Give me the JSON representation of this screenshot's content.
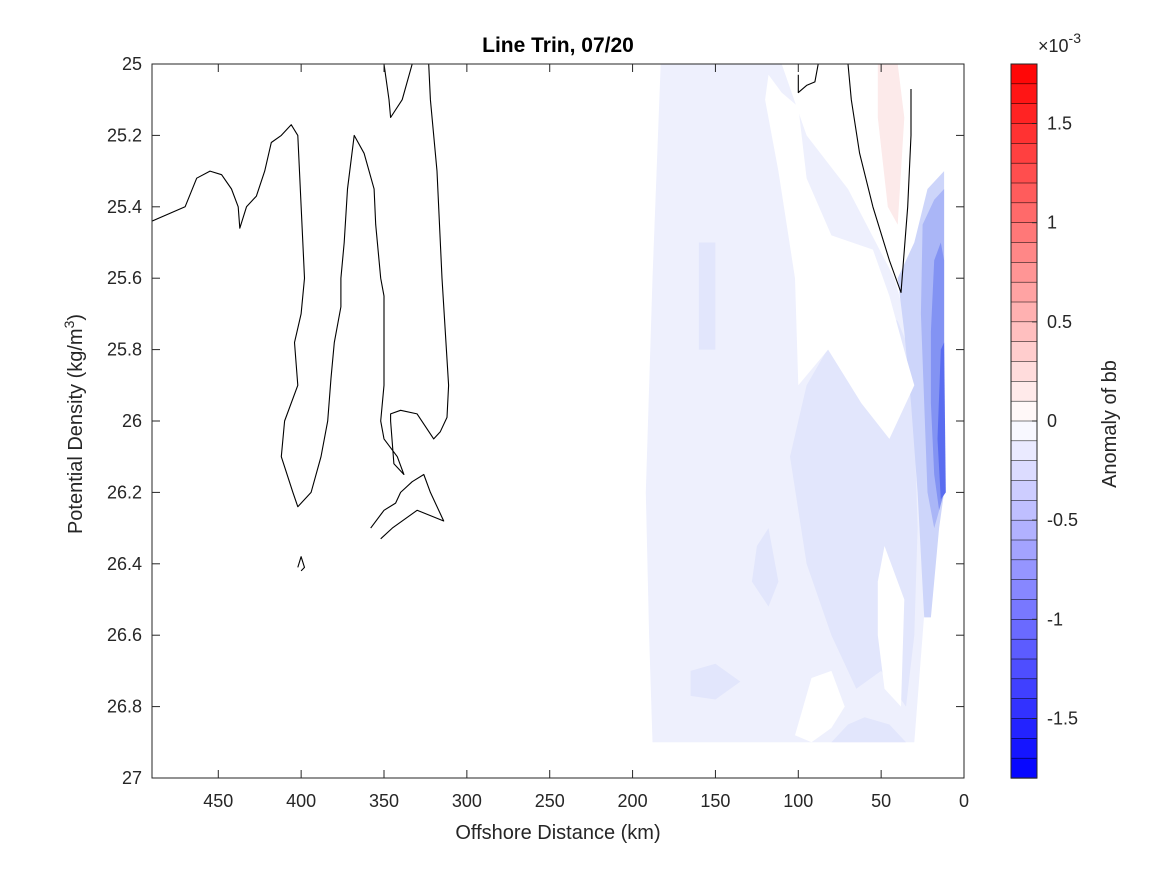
{
  "chart_data": {
    "type": "contour",
    "title": "Line Trin, 07/20",
    "xlabel": "Offshore Distance (km)",
    "ylabel_main": "Potential Density (kg/m",
    "ylabel_sup": "3",
    "ylabel_close": ")",
    "xlim": [
      490,
      0
    ],
    "ylim": [
      25,
      27
    ],
    "x_reversed": true,
    "y_reversed": true,
    "xticks": [
      450,
      400,
      350,
      300,
      250,
      200,
      150,
      100,
      50,
      0
    ],
    "yticks": [
      25,
      25.2,
      25.4,
      25.6,
      25.8,
      26,
      26.2,
      26.4,
      26.6,
      26.8,
      27
    ],
    "ytick_labels": [
      "25",
      "25.2",
      "25.4",
      "25.6",
      "25.8",
      "26",
      "26.2",
      "26.4",
      "26.6",
      "26.8",
      "27"
    ],
    "colorbar": {
      "label": "Anomaly of bb",
      "exponent_base": "×10",
      "exponent_power": "-3",
      "range": [
        -1.8,
        1.8
      ],
      "ticks": [
        1.5,
        1,
        0.5,
        0,
        -0.5,
        -1,
        -1.5
      ],
      "tick_labels": [
        "1.5",
        "1",
        "0.5",
        "0",
        "-0.5",
        "-1",
        "-1.5"
      ],
      "levels": 36,
      "color_low": "#0000ff",
      "color_mid": "#ffffff",
      "color_high": "#ff0000"
    },
    "filled_regions": [
      {
        "level": -0.1,
        "color": "#eef0fd",
        "points": [
          [
            183,
            25
          ],
          [
            110,
            25
          ],
          [
            95,
            25.2
          ],
          [
            70,
            25.35
          ],
          [
            42,
            25.6
          ],
          [
            30,
            25.8
          ],
          [
            22,
            26
          ],
          [
            20,
            26.3
          ],
          [
            25,
            26.6
          ],
          [
            30,
            26.9
          ],
          [
            188,
            26.9
          ],
          [
            190,
            26.6
          ],
          [
            192,
            26.2
          ],
          [
            188,
            25.6
          ]
        ]
      },
      {
        "level": -0.2,
        "color": "#e2e6fc",
        "points": [
          [
            160,
            25.5
          ],
          [
            150,
            25.5
          ],
          [
            150,
            25.8
          ],
          [
            160,
            25.8
          ]
        ]
      },
      {
        "level": -0.2,
        "color": "#e2e6fc",
        "points": [
          [
            70,
            25.7
          ],
          [
            95,
            25.9
          ],
          [
            105,
            26.1
          ],
          [
            95,
            26.4
          ],
          [
            80,
            26.6
          ],
          [
            65,
            26.75
          ],
          [
            50,
            26.7
          ],
          [
            35,
            26.8
          ],
          [
            30,
            26.6
          ],
          [
            28,
            26.3
          ],
          [
            30,
            26
          ],
          [
            33,
            25.8
          ],
          [
            40,
            25.72
          ],
          [
            55,
            25.68
          ]
        ]
      },
      {
        "level": -0.2,
        "color": "#e2e6fc",
        "points": [
          [
            165,
            26.7
          ],
          [
            150,
            26.68
          ],
          [
            135,
            26.73
          ],
          [
            150,
            26.78
          ],
          [
            165,
            26.77
          ]
        ]
      },
      {
        "level": -0.2,
        "color": "#e2e6fc",
        "points": [
          [
            80,
            26.9
          ],
          [
            70,
            26.85
          ],
          [
            60,
            26.83
          ],
          [
            45,
            26.85
          ],
          [
            35,
            26.9
          ]
        ]
      },
      {
        "level": -0.2,
        "color": "#e2e6fc",
        "points": [
          [
            125,
            26.35
          ],
          [
            118,
            26.3
          ],
          [
            112,
            26.45
          ],
          [
            118,
            26.52
          ],
          [
            128,
            26.45
          ]
        ]
      },
      {
        "level": -0.4,
        "color": "#cdd5fa",
        "points": [
          [
            40,
            25.6
          ],
          [
            30,
            25.5
          ],
          [
            22,
            25.35
          ],
          [
            12,
            25.3
          ],
          [
            12,
            26.2
          ],
          [
            15,
            26.3
          ],
          [
            20,
            26.55
          ],
          [
            24,
            26.55
          ],
          [
            28,
            26.2
          ],
          [
            32,
            25.95
          ],
          [
            36,
            25.75
          ]
        ]
      },
      {
        "level": -0.7,
        "color": "#aab6f7",
        "points": [
          [
            25,
            25.45
          ],
          [
            18,
            25.38
          ],
          [
            12,
            25.35
          ],
          [
            12,
            26.2
          ],
          [
            18,
            26.3
          ],
          [
            22,
            26.2
          ],
          [
            24,
            25.95
          ],
          [
            26,
            25.7
          ]
        ]
      },
      {
        "level": -1.0,
        "color": "#8393f3",
        "points": [
          [
            18,
            25.55
          ],
          [
            14,
            25.5
          ],
          [
            12,
            25.55
          ],
          [
            12,
            26.2
          ],
          [
            15,
            26.25
          ],
          [
            18,
            26.15
          ],
          [
            20,
            25.95
          ],
          [
            20,
            25.75
          ]
        ]
      },
      {
        "level": -1.3,
        "color": "#5a6df0",
        "points": [
          [
            14,
            25.8
          ],
          [
            12,
            25.78
          ],
          [
            11,
            26.2
          ],
          [
            14,
            26.22
          ],
          [
            16,
            26.05
          ]
        ]
      },
      {
        "level": 0.1,
        "color": "#fceaea",
        "points": [
          [
            52,
            25
          ],
          [
            40,
            25
          ],
          [
            36,
            25.15
          ],
          [
            40,
            25.45
          ],
          [
            46,
            25.4
          ],
          [
            52,
            25.15
          ]
        ]
      },
      {
        "level": 0.0,
        "color": "#ffffff",
        "points": [
          [
            118,
            25.03
          ],
          [
            110,
            25.08
          ],
          [
            100,
            25.12
          ],
          [
            95,
            25.32
          ],
          [
            80,
            25.48
          ],
          [
            55,
            25.52
          ],
          [
            45,
            25.65
          ],
          [
            35,
            25.82
          ],
          [
            30,
            25.9
          ],
          [
            45,
            26.05
          ],
          [
            62,
            25.95
          ],
          [
            82,
            25.8
          ],
          [
            100,
            25.9
          ],
          [
            102,
            25.6
          ],
          [
            112,
            25.3
          ],
          [
            120,
            25.1
          ]
        ]
      },
      {
        "level": 0.0,
        "color": "#ffffff",
        "points": [
          [
            52,
            26.45
          ],
          [
            48,
            26.35
          ],
          [
            36,
            26.5
          ],
          [
            38,
            26.8
          ],
          [
            48,
            26.75
          ],
          [
            52,
            26.6
          ]
        ]
      },
      {
        "level": 0.0,
        "color": "#ffffff",
        "points": [
          [
            102,
            26.88
          ],
          [
            92,
            26.72
          ],
          [
            80,
            26.7
          ],
          [
            72,
            26.8
          ],
          [
            80,
            26.86
          ],
          [
            92,
            26.9
          ]
        ]
      }
    ],
    "contour_lines": [
      {
        "level": 0,
        "points": [
          [
            490,
            25.44
          ],
          [
            470,
            25.4
          ],
          [
            463,
            25.32
          ],
          [
            455,
            25.3
          ],
          [
            448,
            25.31
          ],
          [
            442,
            25.35
          ],
          [
            438,
            25.4
          ],
          [
            437,
            25.46
          ],
          [
            433,
            25.4
          ],
          [
            427,
            25.37
          ],
          [
            422,
            25.3
          ],
          [
            418,
            25.22
          ],
          [
            412,
            25.2
          ],
          [
            406,
            25.17
          ],
          [
            402,
            25.2
          ],
          [
            398,
            25.6
          ],
          [
            400,
            25.7
          ],
          [
            404,
            25.78
          ],
          [
            402,
            25.9
          ],
          [
            410,
            26
          ],
          [
            412,
            26.1
          ],
          [
            405,
            26.2
          ],
          [
            402,
            26.24
          ],
          [
            394,
            26.2
          ],
          [
            388,
            26.1
          ],
          [
            384,
            26
          ],
          [
            382,
            25.88
          ],
          [
            380,
            25.78
          ],
          [
            376,
            25.68
          ],
          [
            376,
            25.6
          ],
          [
            374,
            25.5
          ],
          [
            372,
            25.35
          ],
          [
            368,
            25.2
          ],
          [
            362,
            25.25
          ],
          [
            356,
            25.35
          ],
          [
            355,
            25.45
          ],
          [
            352,
            25.6
          ],
          [
            350,
            25.65
          ],
          [
            350,
            25.9
          ],
          [
            352,
            26
          ],
          [
            350,
            26.05
          ],
          [
            342,
            26.1
          ],
          [
            338,
            26.15
          ],
          [
            344,
            26.12
          ],
          [
            346,
            26
          ],
          [
            346,
            25.98
          ],
          [
            340,
            25.97
          ],
          [
            330,
            25.98
          ],
          [
            320,
            26.05
          ],
          [
            316,
            26.03
          ],
          [
            312,
            25.99
          ],
          [
            311,
            25.9
          ],
          [
            315,
            25.6
          ],
          [
            318,
            25.3
          ],
          [
            322,
            25.1
          ],
          [
            323,
            25
          ]
        ]
      },
      {
        "level": 0,
        "points": [
          [
            350,
            25
          ],
          [
            347,
            25.1
          ],
          [
            346,
            25.15
          ],
          [
            339,
            25.1
          ],
          [
            333,
            25
          ]
        ]
      },
      {
        "level": 0,
        "points": [
          [
            402,
            26.41
          ],
          [
            400,
            26.38
          ],
          [
            398,
            26.41
          ],
          [
            400,
            26.42
          ]
        ]
      },
      {
        "level": 0,
        "points": [
          [
            358,
            26.3
          ],
          [
            350,
            26.25
          ],
          [
            343,
            26.23
          ],
          [
            340,
            26.2
          ],
          [
            333,
            26.17
          ],
          [
            326,
            26.15
          ],
          [
            322,
            26.2
          ],
          [
            314,
            26.28
          ],
          [
            330,
            26.25
          ],
          [
            345,
            26.3
          ],
          [
            352,
            26.33
          ]
        ]
      },
      {
        "level": 0,
        "points": [
          [
            100,
            25.03
          ],
          [
            100,
            25.08
          ],
          [
            95,
            25.06
          ],
          [
            90,
            25.05
          ],
          [
            88,
            25
          ]
        ]
      },
      {
        "level": 0,
        "points": [
          [
            70,
            25
          ],
          [
            68,
            25.1
          ],
          [
            63,
            25.25
          ],
          [
            55,
            25.4
          ],
          [
            45,
            25.55
          ],
          [
            38,
            25.64
          ],
          [
            34,
            25.4
          ],
          [
            32,
            25.2
          ],
          [
            32,
            25.07
          ]
        ]
      }
    ]
  }
}
